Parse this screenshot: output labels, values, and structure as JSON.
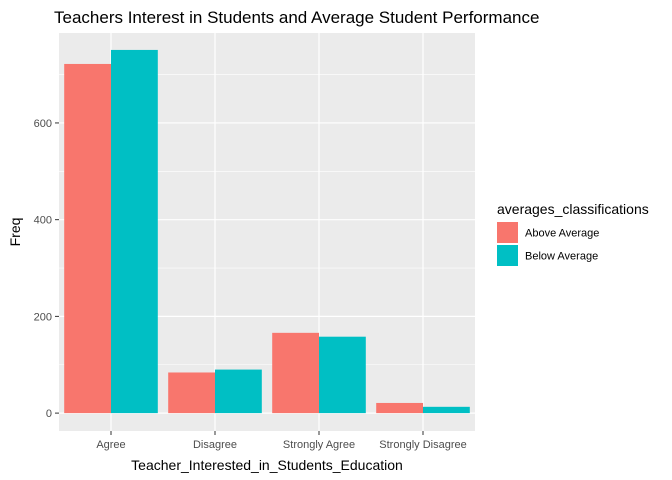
{
  "chart_data": {
    "type": "bar",
    "title": "Teachers Interest in Students and Average Student Performance",
    "xlabel": "Teacher_Interested_in_Students_Education",
    "ylabel": "Freq",
    "categories": [
      "Agree",
      "Disagree",
      "Strongly Agree",
      "Strongly Disagree"
    ],
    "series": [
      {
        "name": "Above Average",
        "color": "#F8766D",
        "values": [
          722,
          84,
          166,
          21
        ]
      },
      {
        "name": "Below Average",
        "color": "#00BFC4",
        "values": [
          751,
          90,
          158,
          13
        ]
      }
    ],
    "ylim": [
      -37,
      786
    ],
    "yticks": [
      0,
      200,
      400,
      600
    ],
    "grid": true,
    "legend": {
      "title": "averages_classifications",
      "position": "right"
    },
    "panel_background": "#EBEBEB",
    "grid_color": "#FFFFFF"
  }
}
